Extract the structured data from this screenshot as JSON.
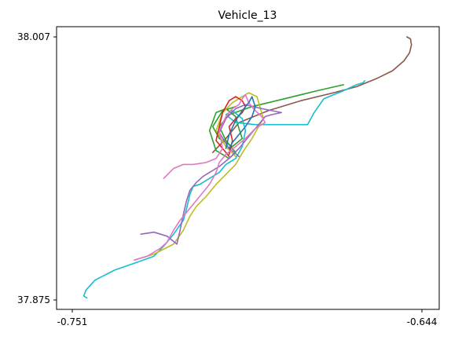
{
  "chart_data": {
    "type": "line",
    "title": "Vehicle_13",
    "xlabel": "",
    "ylabel": "",
    "xlim": [
      -0.751,
      -0.644
    ],
    "ylim": [
      37.875,
      38.007
    ],
    "x_ticks": [
      {
        "value": -0.751,
        "label": "-0.751"
      },
      {
        "value": -0.644,
        "label": "-0.644"
      }
    ],
    "y_ticks": [
      {
        "value": 38.007,
        "label": "38.007"
      },
      {
        "value": 37.875,
        "label": "37.875"
      }
    ],
    "grid": false,
    "legend": "none",
    "series": [
      {
        "color": "#8c564b",
        "x": [
          -0.6486,
          -0.6475,
          -0.6472,
          -0.6478,
          -0.6495,
          -0.653,
          -0.658,
          -0.664,
          -0.671,
          -0.681,
          -0.691,
          -0.7,
          -0.704,
          -0.708
        ],
        "y": [
          38.007,
          38.006,
          38.003,
          37.999,
          37.995,
          37.99,
          37.986,
          37.982,
          37.979,
          37.975,
          37.97,
          37.964,
          37.956,
          37.949
        ]
      },
      {
        "color": "#2ca02c",
        "x": [
          -0.668,
          -0.676,
          -0.686,
          -0.696,
          -0.703,
          -0.706,
          -0.704,
          -0.701,
          -0.703,
          -0.707,
          -0.709,
          -0.707,
          -0.704,
          -0.701,
          -0.7,
          -0.699,
          -0.702,
          -0.706,
          -0.708,
          -0.705,
          -0.701
        ],
        "y": [
          37.983,
          37.98,
          37.976,
          37.972,
          37.968,
          37.962,
          37.955,
          37.949,
          37.946,
          37.95,
          37.96,
          37.969,
          37.971,
          37.967,
          37.961,
          37.956,
          37.952,
          37.956,
          37.962,
          37.97,
          37.972
        ]
      },
      {
        "color": "#17becf",
        "x": [
          -0.7465,
          -0.7475,
          -0.7468,
          -0.744,
          -0.738,
          -0.731,
          -0.726,
          -0.723,
          -0.72,
          -0.717,
          -0.716,
          -0.715,
          -0.714,
          -0.712,
          -0.709,
          -0.706,
          -0.704,
          -0.701,
          -0.699,
          -0.698,
          -0.699,
          -0.702,
          -0.704,
          -0.701,
          -0.695,
          -0.688,
          -0.679,
          -0.677,
          -0.674,
          -0.668,
          -0.664,
          -0.662,
          -0.6615
        ],
        "y": [
          37.876,
          37.877,
          37.88,
          37.885,
          37.89,
          37.894,
          37.897,
          37.902,
          37.908,
          37.915,
          37.921,
          37.928,
          37.932,
          37.933,
          37.936,
          37.939,
          37.943,
          37.946,
          37.952,
          37.96,
          37.966,
          37.97,
          37.968,
          37.964,
          37.963,
          37.963,
          37.963,
          37.969,
          37.976,
          37.98,
          37.983,
          37.984,
          37.985
        ]
      },
      {
        "color": "#bcbd22",
        "x": [
          -0.732,
          -0.726,
          -0.72,
          -0.717,
          -0.715,
          -0.713,
          -0.71,
          -0.707,
          -0.704,
          -0.701,
          -0.6985,
          -0.696,
          -0.694,
          -0.6925,
          -0.6945,
          -0.697,
          -0.699,
          -0.702,
          -0.705,
          -0.707,
          -0.704,
          -0.701
        ],
        "y": [
          37.895,
          37.898,
          37.903,
          37.91,
          37.917,
          37.922,
          37.927,
          37.933,
          37.938,
          37.943,
          37.95,
          37.956,
          37.962,
          37.966,
          37.977,
          37.979,
          37.977,
          37.974,
          37.969,
          37.96,
          37.952,
          37.947
        ]
      },
      {
        "color": "#9467bd",
        "x": [
          -0.73,
          -0.726,
          -0.722,
          -0.719,
          -0.718,
          -0.717,
          -0.716,
          -0.715,
          -0.713,
          -0.711,
          -0.709,
          -0.706,
          -0.703,
          -0.7,
          -0.697,
          -0.694,
          -0.692,
          -0.69,
          -0.687,
          -0.693,
          -0.698,
          -0.701,
          -0.704,
          -0.706,
          -0.703,
          -0.7
        ],
        "y": [
          37.908,
          37.909,
          37.907,
          37.903,
          37.91,
          37.918,
          37.925,
          37.93,
          37.934,
          37.937,
          37.939,
          37.942,
          37.946,
          37.951,
          37.957,
          37.963,
          37.967,
          37.968,
          37.969,
          37.971,
          37.973,
          37.971,
          37.966,
          37.959,
          37.951,
          37.947
        ]
      },
      {
        "color": "#d62728",
        "x": [
          -0.703,
          -0.702,
          -0.703,
          -0.701,
          -0.699,
          -0.698,
          -0.699,
          -0.701,
          -0.703,
          -0.705,
          -0.706,
          -0.707,
          -0.705,
          -0.703
        ],
        "y": [
          37.948,
          37.955,
          37.962,
          37.966,
          37.969,
          37.972,
          37.975,
          37.977,
          37.975,
          37.969,
          37.962,
          37.955,
          37.951,
          37.947
        ]
      },
      {
        "color": "#e377c2",
        "x": [
          -0.723,
          -0.72,
          -0.717,
          -0.714,
          -0.71,
          -0.707,
          -0.705,
          -0.706,
          -0.704,
          -0.702,
          -0.7,
          -0.699,
          -0.698,
          -0.697,
          -0.695,
          -0.693,
          -0.692,
          -0.695,
          -0.698,
          -0.701,
          -0.704,
          -0.706,
          -0.707,
          -0.709,
          -0.712,
          -0.715,
          -0.718,
          -0.72,
          -0.722,
          -0.724,
          -0.726,
          -0.728,
          -0.732
        ],
        "y": [
          37.936,
          37.941,
          37.943,
          37.943,
          37.944,
          37.946,
          37.951,
          37.96,
          37.967,
          37.971,
          37.973,
          37.976,
          37.978,
          37.974,
          37.97,
          37.967,
          37.964,
          37.961,
          37.956,
          37.952,
          37.948,
          37.944,
          37.939,
          37.933,
          37.927,
          37.921,
          37.915,
          37.91,
          37.904,
          37.901,
          37.899,
          37.897,
          37.895
        ]
      },
      {
        "color": "#1f77b4",
        "x": [
          -0.704,
          -0.703,
          -0.701,
          -0.699,
          -0.697,
          -0.696,
          -0.695,
          -0.696,
          -0.698,
          -0.7,
          -0.702,
          -0.703
        ],
        "y": [
          37.951,
          37.958,
          37.965,
          37.97,
          37.974,
          37.977,
          37.972,
          37.967,
          37.962,
          37.958,
          37.954,
          37.951
        ]
      }
    ]
  }
}
